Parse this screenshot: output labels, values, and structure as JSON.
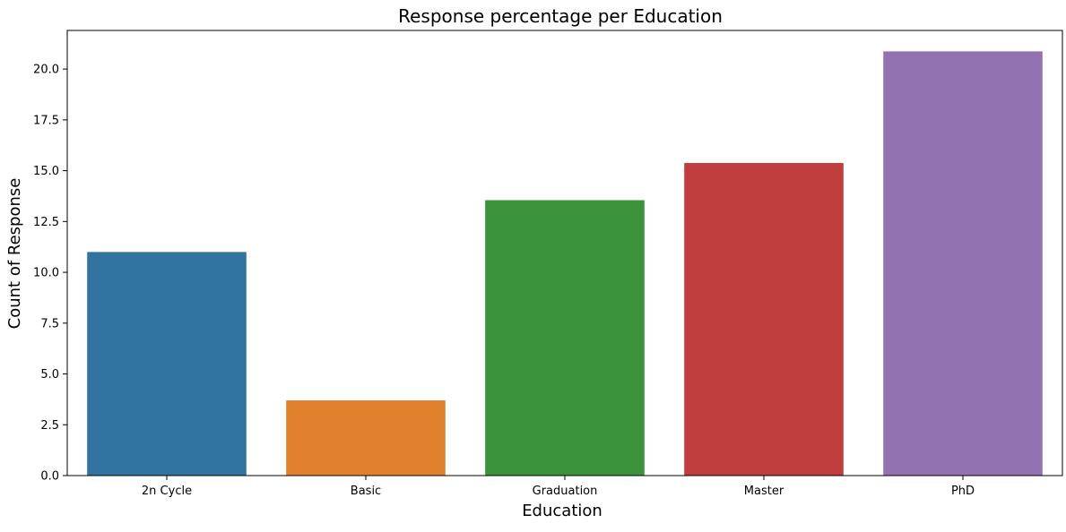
{
  "chart_data": {
    "type": "bar",
    "title": "Response percentage per Education",
    "xlabel": "Education",
    "ylabel": "Count of Response",
    "categories": [
      "2n Cycle",
      "Basic",
      "Graduation",
      "Master",
      "PhD"
    ],
    "values": [
      11.0,
      3.7,
      13.55,
      15.38,
      20.87
    ],
    "colors": [
      "#3274a1",
      "#e1812c",
      "#3a923a",
      "#c03d3e",
      "#9372b2"
    ],
    "ylim": [
      0,
      21.9
    ],
    "yticks": [
      "0.0",
      "2.5",
      "5.0",
      "7.5",
      "10.0",
      "12.5",
      "15.0",
      "17.5",
      "20.0"
    ],
    "grid": false,
    "legend": "none"
  }
}
